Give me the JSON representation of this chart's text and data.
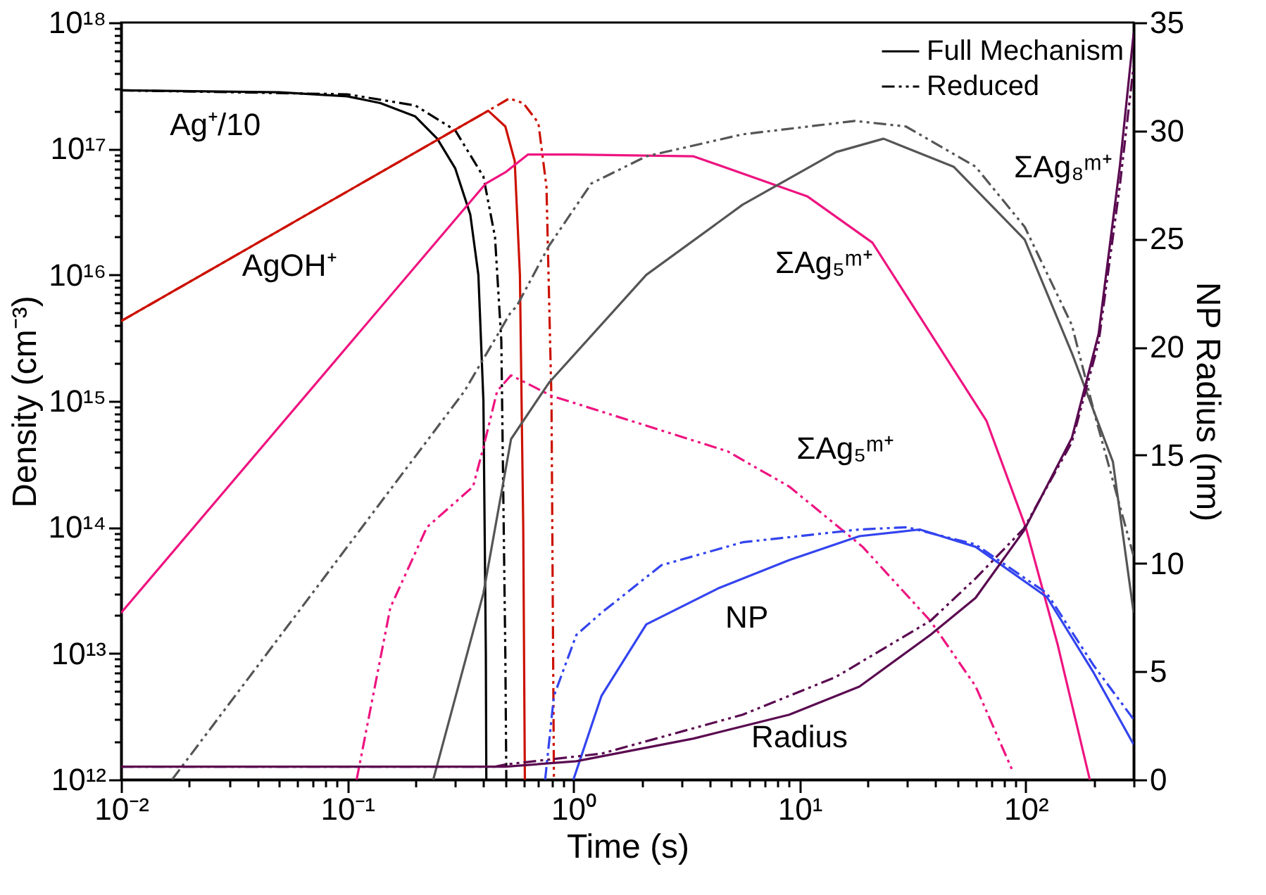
{
  "chart_data": {
    "type": "line",
    "xlabel": "Time (s)",
    "ylabel": "Density (cm⁻³)",
    "y2label": "NP Radius (nm)",
    "log": "xy",
    "grid": false,
    "xlim": [
      0.01,
      300
    ],
    "ylim": [
      1000000000000.0,
      1e+18
    ],
    "y2lim": [
      0,
      35
    ],
    "xticks": [
      {
        "value": 0.01,
        "label": "10⁻²"
      },
      {
        "value": 0.02,
        "label": null
      },
      {
        "value": 0.03,
        "label": null
      },
      {
        "value": 0.04,
        "label": null
      },
      {
        "value": 0.05,
        "label": null
      },
      {
        "value": 0.06,
        "label": null
      },
      {
        "value": 0.07,
        "label": null
      },
      {
        "value": 0.08,
        "label": null
      },
      {
        "value": 0.09,
        "label": null
      },
      {
        "value": 0.1,
        "label": "10⁻¹"
      },
      {
        "value": 0.2,
        "label": null
      },
      {
        "value": 0.3,
        "label": null
      },
      {
        "value": 0.4,
        "label": null
      },
      {
        "value": 0.5,
        "label": null
      },
      {
        "value": 0.6,
        "label": null
      },
      {
        "value": 0.7,
        "label": null
      },
      {
        "value": 0.8,
        "label": null
      },
      {
        "value": 0.9,
        "label": null
      },
      {
        "value": 1,
        "label": "10⁰"
      },
      {
        "value": 2,
        "label": null
      },
      {
        "value": 3,
        "label": null
      },
      {
        "value": 4,
        "label": null
      },
      {
        "value": 5,
        "label": null
      },
      {
        "value": 6,
        "label": null
      },
      {
        "value": 7,
        "label": null
      },
      {
        "value": 8,
        "label": null
      },
      {
        "value": 9,
        "label": null
      },
      {
        "value": 10,
        "label": "10¹"
      },
      {
        "value": 20,
        "label": null
      },
      {
        "value": 30,
        "label": null
      },
      {
        "value": 40,
        "label": null
      },
      {
        "value": 50,
        "label": null
      },
      {
        "value": 60,
        "label": null
      },
      {
        "value": 70,
        "label": null
      },
      {
        "value": 80,
        "label": null
      },
      {
        "value": 90,
        "label": null
      },
      {
        "value": 100,
        "label": "10²"
      },
      {
        "value": 200,
        "label": null
      },
      {
        "value": 300,
        "label": null
      }
    ],
    "yticks": [
      {
        "value": 1000000000000.0,
        "label": "10¹²"
      },
      {
        "value": 2000000000000.0,
        "label": null
      },
      {
        "value": 3000000000000.0,
        "label": null
      },
      {
        "value": 4000000000000.0,
        "label": null
      },
      {
        "value": 5000000000000.0,
        "label": null
      },
      {
        "value": 6000000000000.0,
        "label": null
      },
      {
        "value": 7000000000000.0,
        "label": null
      },
      {
        "value": 8000000000000.0,
        "label": null
      },
      {
        "value": 9000000000000.0,
        "label": null
      },
      {
        "value": 10000000000000.0,
        "label": "10¹³"
      },
      {
        "value": 20000000000000.0,
        "label": null
      },
      {
        "value": 30000000000000.0,
        "label": null
      },
      {
        "value": 40000000000000.0,
        "label": null
      },
      {
        "value": 50000000000000.0,
        "label": null
      },
      {
        "value": 60000000000000.0,
        "label": null
      },
      {
        "value": 70000000000000.0,
        "label": null
      },
      {
        "value": 80000000000000.0,
        "label": null
      },
      {
        "value": 90000000000000.0,
        "label": null
      },
      {
        "value": 100000000000000.0,
        "label": "10¹⁴"
      },
      {
        "value": 200000000000000.0,
        "label": null
      },
      {
        "value": 300000000000000.0,
        "label": null
      },
      {
        "value": 400000000000000.0,
        "label": null
      },
      {
        "value": 500000000000000.0,
        "label": null
      },
      {
        "value": 600000000000000.0,
        "label": null
      },
      {
        "value": 700000000000000.0,
        "label": null
      },
      {
        "value": 800000000000000.0,
        "label": null
      },
      {
        "value": 900000000000000.0,
        "label": null
      },
      {
        "value": 1000000000000000.0,
        "label": "10¹⁵"
      },
      {
        "value": 2000000000000000.0,
        "label": null
      },
      {
        "value": 3000000000000000.0,
        "label": null
      },
      {
        "value": 4000000000000000.0,
        "label": null
      },
      {
        "value": 5000000000000000.0,
        "label": null
      },
      {
        "value": 6000000000000000.0,
        "label": null
      },
      {
        "value": 7000000000000000.0,
        "label": null
      },
      {
        "value": 8000000000000000.0,
        "label": null
      },
      {
        "value": 9000000000000000.0,
        "label": null
      },
      {
        "value": 1e+16,
        "label": "10¹⁶"
      },
      {
        "value": 2e+16,
        "label": null
      },
      {
        "value": 3e+16,
        "label": null
      },
      {
        "value": 4e+16,
        "label": null
      },
      {
        "value": 5e+16,
        "label": null
      },
      {
        "value": 6e+16,
        "label": null
      },
      {
        "value": 7e+16,
        "label": null
      },
      {
        "value": 8e+16,
        "label": null
      },
      {
        "value": 9e+16,
        "label": null
      },
      {
        "value": 1e+17,
        "label": "10¹⁷"
      },
      {
        "value": 2e+17,
        "label": null
      },
      {
        "value": 3e+17,
        "label": null
      },
      {
        "value": 4e+17,
        "label": null
      },
      {
        "value": 5e+17,
        "label": null
      },
      {
        "value": 6e+17,
        "label": null
      },
      {
        "value": 7e+17,
        "label": null
      },
      {
        "value": 8e+17,
        "label": null
      },
      {
        "value": 9e+17,
        "label": null
      },
      {
        "value": 1e+18,
        "label": "10¹⁸"
      }
    ],
    "y2ticks": [
      0,
      5,
      10,
      15,
      20,
      25,
      30,
      35
    ],
    "series": [
      {
        "color": "#000000",
        "line_style": "solid",
        "x": [
          0.01,
          0.05,
          0.1,
          0.14,
          0.2,
          0.25,
          0.3,
          0.35,
          0.38,
          0.4,
          0.41,
          0.412
        ],
        "values": [
          2.9e+17,
          2.8e+17,
          2.6e+17,
          2.3e+17,
          1.8e+17,
          1.2e+17,
          7e+16,
          3e+16,
          1e+16,
          1000000000000000.0,
          10000000000000.0,
          1000000000000.0
        ]
      },
      {
        "color": "#000000",
        "line_style": "dashed",
        "x": [
          0.01,
          0.1,
          0.2,
          0.3,
          0.4,
          0.45,
          0.48,
          0.5,
          0.505
        ],
        "values": [
          2.9e+17,
          2.7e+17,
          2.2e+17,
          1.4e+17,
          6e+16,
          2e+16,
          3000000000000000.0,
          10000000000000.0,
          1000000000000.0
        ]
      },
      {
        "color": "#cc1100",
        "line_style": "solid",
        "x": [
          0.01,
          0.42,
          0.5,
          0.55,
          0.58,
          0.6,
          0.61
        ],
        "values": [
          4300000000000000.0,
          2e+17,
          1.5e+17,
          8e+16,
          1e+16,
          100000000000000.0,
          1000000000000.0
        ]
      },
      {
        "color": "#cc1100",
        "line_style": "dashed",
        "x": [
          0.01,
          0.42,
          0.52,
          0.6,
          0.7,
          0.76,
          0.8,
          0.82
        ],
        "values": [
          4300000000000000.0,
          2e+17,
          2.5e+17,
          2.3e+17,
          1.6e+17,
          5e+16,
          1000000000000000.0,
          1000000000000.0
        ]
      },
      {
        "color": "#ee1480",
        "line_style": "solid",
        "x": [
          0.01,
          0.41,
          0.5,
          0.63,
          1,
          3.4,
          10.8,
          21,
          67,
          100,
          138,
          192
        ],
        "values": [
          21000000000000.0,
          5.3e+16,
          6.5e+16,
          9e+16,
          9e+16,
          8.7e+16,
          4.2e+16,
          1.8e+16,
          700000000000000.0,
          100000000000000.0,
          12000000000000.0,
          1000000000000.0
        ]
      },
      {
        "color": "#ee1480",
        "line_style": "dashed",
        "x": [
          0.11,
          0.155,
          0.225,
          0.36,
          0.4,
          0.46,
          0.53,
          0.8,
          4.8,
          9,
          19,
          38,
          60,
          87
        ],
        "values": [
          1000000000000.0,
          23000000000000.0,
          100000000000000.0,
          210000000000000.0,
          430000000000000.0,
          1200000000000000.0,
          1600000000000000.0,
          1100000000000000.0,
          400000000000000.0,
          210000000000000.0,
          70000000000000.0,
          18000000000000.0,
          5500000000000.0,
          1200000000000.0
        ]
      },
      {
        "color": "#555555",
        "line_style": "solid",
        "x": [
          0.24,
          0.4,
          0.53,
          0.78,
          2.1,
          5.6,
          14.5,
          23.5,
          48,
          99,
          160,
          243,
          300
        ],
        "values": [
          1000000000000.0,
          30000000000000.0,
          500000000000000.0,
          1400000000000000.0,
          1e+16,
          3.6e+16,
          9.4e+16,
          1.2e+17,
          7.2e+16,
          1.9e+16,
          2400000000000000.0,
          330000000000000.0,
          21000000000000.0
        ]
      },
      {
        "color": "#555555",
        "line_style": "dashed",
        "x": [
          0.0168,
          0.33,
          0.53,
          0.56,
          0.78,
          1.2,
          2.1,
          5.6,
          17.6,
          29.5,
          60,
          99,
          160,
          202,
          300
        ],
        "values": [
          1000000000000.0,
          1200000000000000.0,
          5100000000000000.0,
          5600000000000000.0,
          1.7e+16,
          5.3e+16,
          8.7e+16,
          1.3e+17,
          1.66e+17,
          1.5e+17,
          7.2e+16,
          2.4e+16,
          4000000000000000.0,
          780000000000000.0,
          59000000000000.0
        ]
      },
      {
        "color": "#3344ee",
        "line_style": "solid",
        "x": [
          1,
          1.33,
          2.1,
          4.4,
          9,
          18.4,
          34,
          60,
          124,
          200,
          300
        ],
        "values": [
          1000000000000.0,
          4600000000000.0,
          17000000000000.0,
          33000000000000.0,
          55000000000000.0,
          85000000000000.0,
          96000000000000.0,
          70000000000000.0,
          28000000000000.0,
          7000000000000.0,
          1900000000000.0
        ]
      },
      {
        "color": "#3344ee",
        "line_style": "dashed",
        "x": [
          0.75,
          0.82,
          1.03,
          1.33,
          2.45,
          5.6,
          18.4,
          30,
          60,
          124,
          200,
          300
        ],
        "values": [
          1000000000000.0,
          4600000000000.0,
          14000000000000.0,
          21000000000000.0,
          50000000000000.0,
          76000000000000.0,
          96000000000000.0,
          100000000000000.0,
          73000000000000.0,
          30000000000000.0,
          8000000000000.0,
          3000000000000.0
        ]
      },
      {
        "color": "#5a0a50",
        "line_style": "solid",
        "axis": "y2",
        "x": [
          0.01,
          0.5,
          1.03,
          3.4,
          9,
          18.4,
          38,
          60,
          98,
          160,
          210,
          261,
          300
        ],
        "values": [
          0.6,
          0.6,
          0.85,
          1.9,
          3.0,
          4.3,
          6.7,
          8.4,
          11.5,
          15.8,
          20.6,
          28.4,
          34.5
        ]
      },
      {
        "color": "#5a0a50",
        "line_style": "dashed",
        "axis": "y2",
        "x": [
          0.01,
          0.45,
          0.5,
          1.33,
          5.6,
          14.5,
          38,
          60,
          98,
          160,
          210,
          261,
          300
        ],
        "values": [
          0.6,
          0.6,
          0.7,
          1.2,
          3.0,
          4.75,
          7.35,
          9.3,
          11.6,
          15.6,
          20.2,
          27.5,
          33
        ]
      }
    ],
    "annotations": [
      "Full Mechanism",
      "Reduced",
      "Ag⁺/10",
      "AgOH⁺",
      "ΣAg₅ᵐ⁺",
      "ΣAg₈ᵐ⁺",
      "ΣAg₅ᵐ⁺",
      "NP",
      "Radius"
    ]
  }
}
